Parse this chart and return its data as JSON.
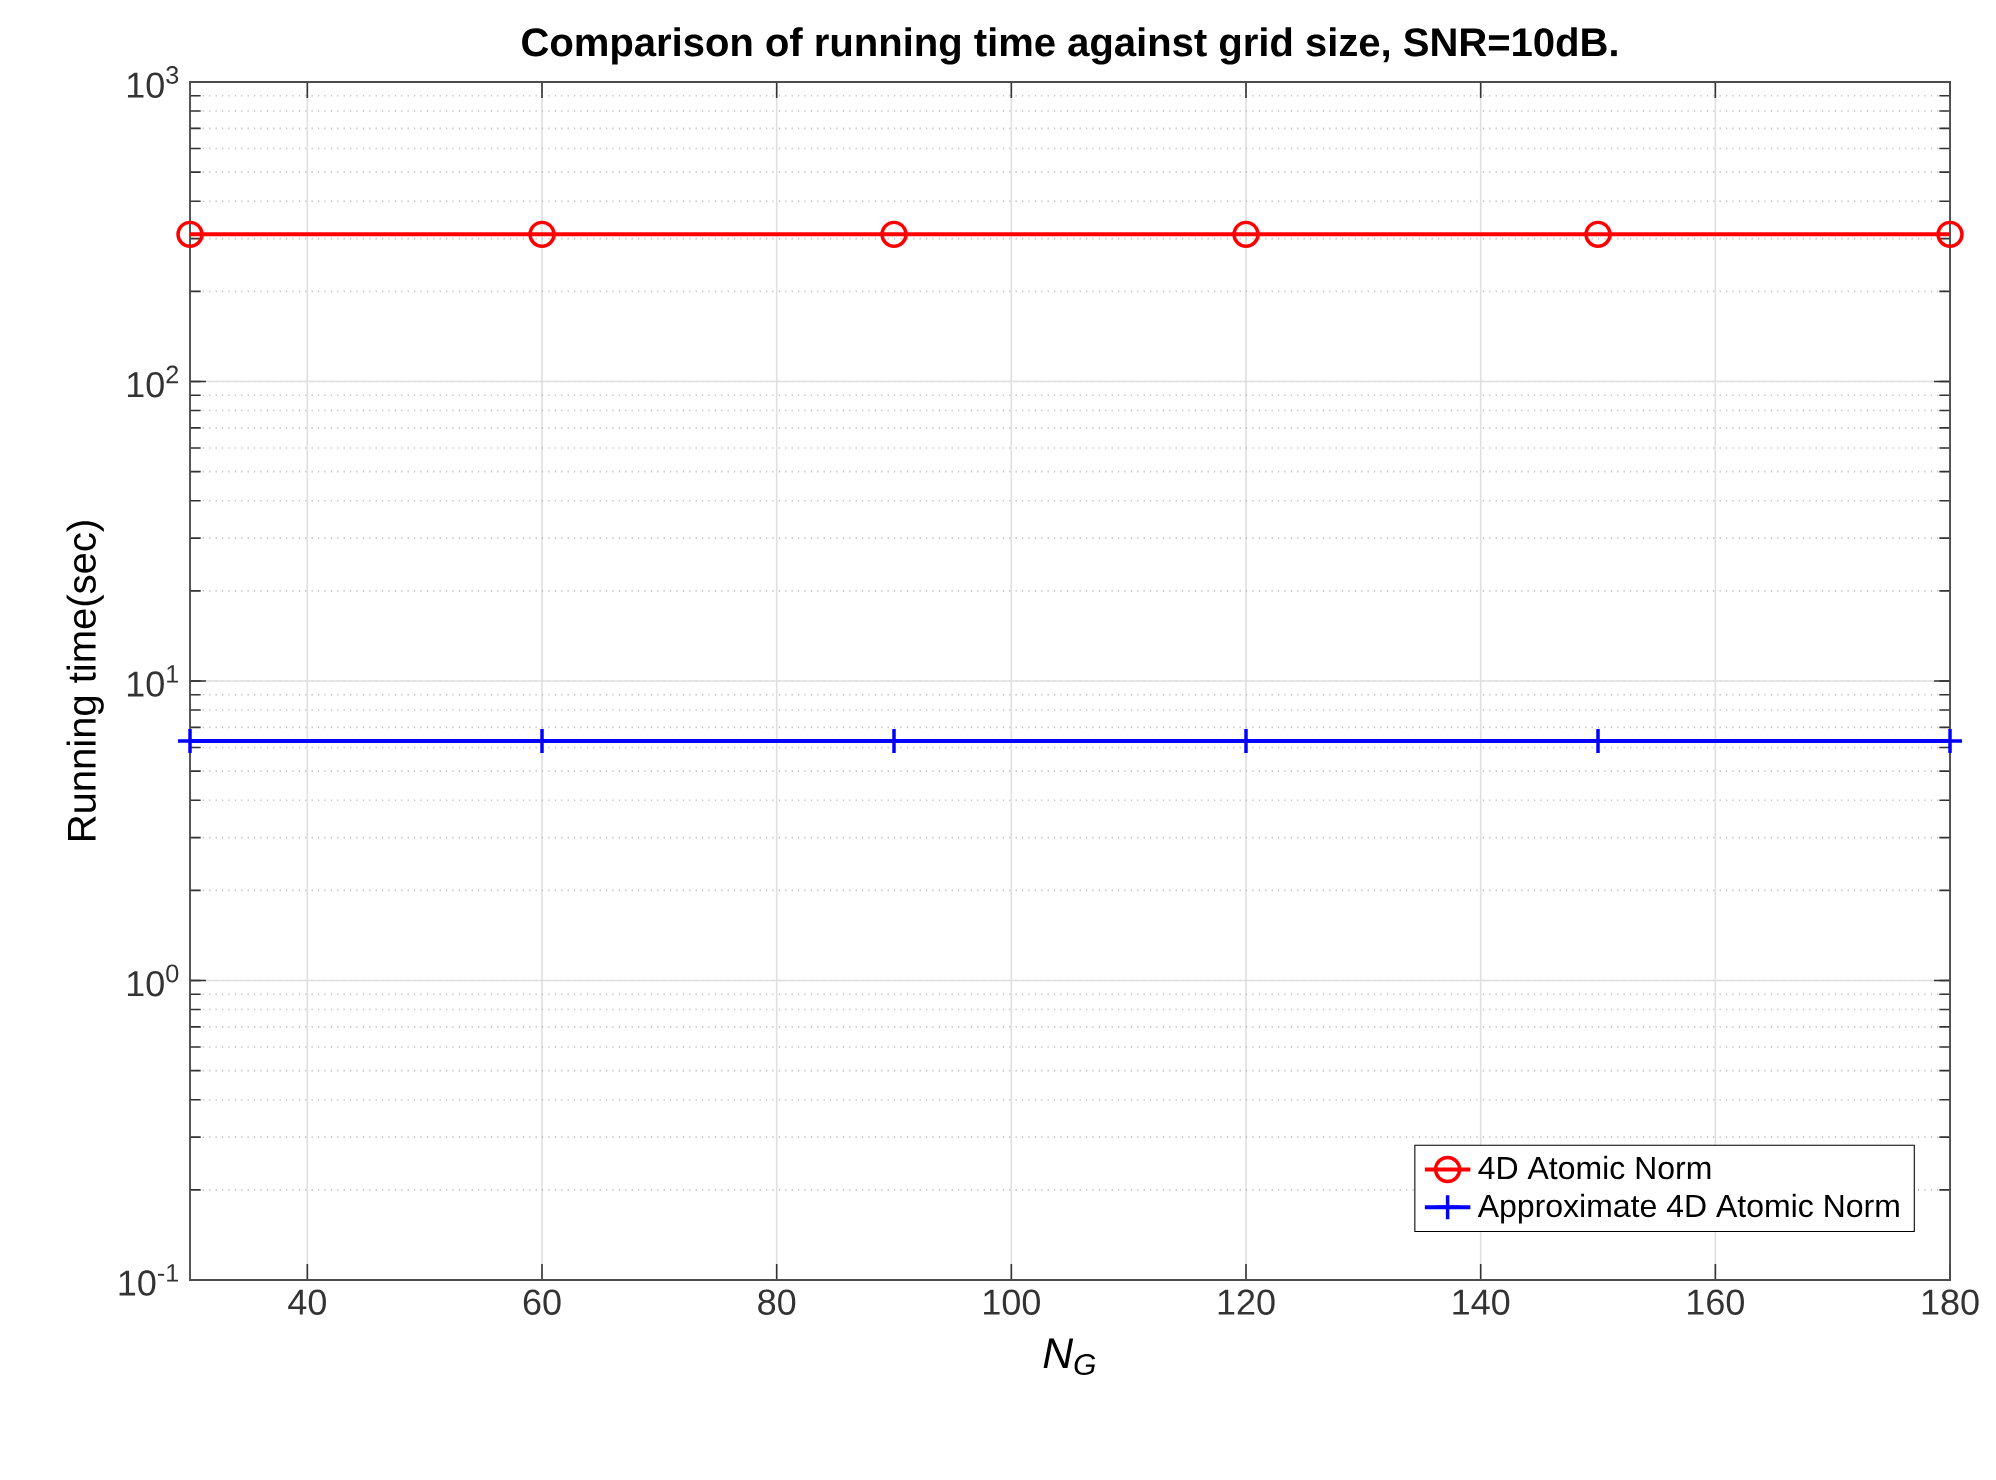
{
  "chart_data": {
    "type": "line",
    "title": "Comparison of running time against grid size, SNR=10dB.",
    "xlabel": "*N*$_{G}$",
    "ylabel": "Running time(sec)",
    "x": [
      30,
      60,
      90,
      120,
      150,
      180
    ],
    "series": [
      {
        "name": "4D Atomic Norm",
        "color": "#ff0000",
        "marker": "circle",
        "values": [
          310,
          310,
          310,
          310,
          310,
          310
        ]
      },
      {
        "name": "Approximate 4D Atomic Norm",
        "color": "#0000ff",
        "marker": "cross",
        "values": [
          6.3,
          6.3,
          6.3,
          6.3,
          6.3,
          6.3
        ]
      }
    ],
    "log": "y",
    "grid": true,
    "legend": "bottom right",
    "xlim": [
      30,
      180
    ],
    "xticks": [
      40,
      60,
      80,
      100,
      120,
      140,
      160,
      180
    ],
    "ylim": [
      0.1,
      1000
    ],
    "yticks": [
      {
        "value": 0.1,
        "label": "10$^{-1}$"
      },
      {
        "value": 1,
        "label": "10$^{0}$"
      },
      {
        "value": 10,
        "label": "10$^{1}$"
      },
      {
        "value": 100,
        "label": "10$^{2}$"
      },
      {
        "value": 1000,
        "label": "10$^{3}$"
      }
    ]
  }
}
